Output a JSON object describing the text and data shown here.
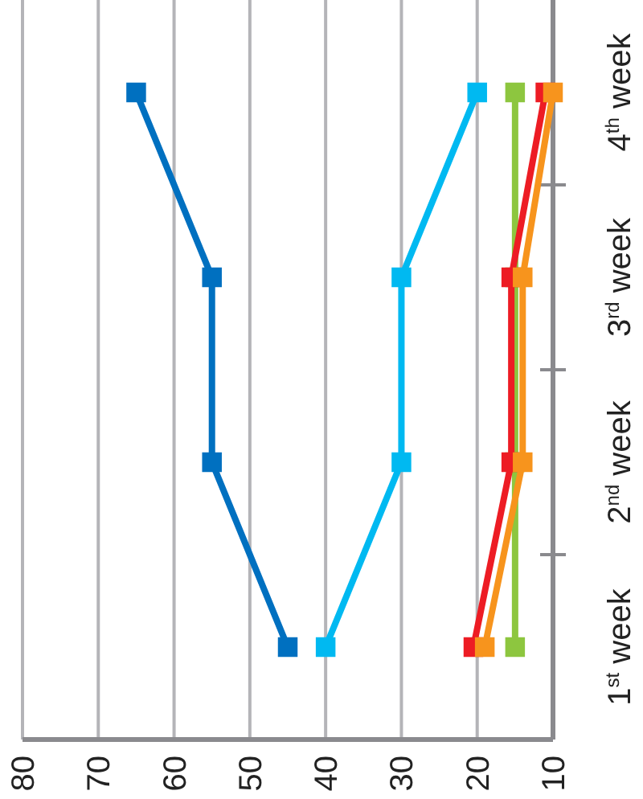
{
  "chart_data": {
    "type": "line",
    "orientation": "horizontal",
    "categories": [
      "4$^{th}$ week",
      "3$^{rd}$ week",
      "2$^{nd}$ week",
      "1$^{st}$ week"
    ],
    "series": [
      {
        "color": "#0070c0",
        "values": [
          65,
          55,
          55,
          45
        ]
      },
      {
        "color": "#00b9f1",
        "values": [
          20,
          30,
          30,
          40
        ]
      },
      {
        "color": "#8dc63f",
        "values": [
          15,
          15,
          15,
          15
        ]
      },
      {
        "color": "#ed1c24",
        "values": [
          11,
          15.5,
          15.5,
          20.5
        ]
      },
      {
        "color": "#f7941d",
        "values": [
          10,
          14,
          14,
          19
        ]
      }
    ],
    "xlim": [
      80,
      10
    ],
    "xticks": [
      80,
      70,
      60,
      50,
      40,
      30,
      20,
      10
    ],
    "grid": "x",
    "marker": "square",
    "line_style": "solid"
  }
}
